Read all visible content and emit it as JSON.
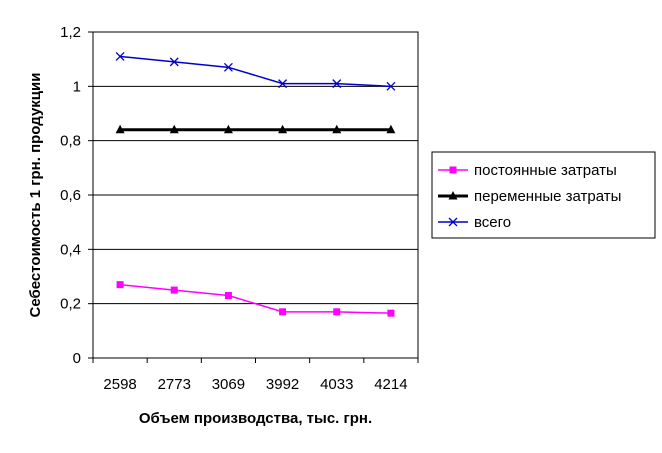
{
  "chart_data": {
    "type": "line",
    "title": "",
    "xlabel": "Объем производства, тыс. грн.",
    "ylabel": "Себестоимость 1 грн. продукции",
    "categories": [
      "2598",
      "2773",
      "3069",
      "3992",
      "4033",
      "4214"
    ],
    "ylim": [
      0,
      1.2
    ],
    "yticks": [
      "0",
      "0,2",
      "0,4",
      "0,6",
      "0,8",
      "1",
      "1,2"
    ],
    "grid": true,
    "legend_position": "right",
    "series": [
      {
        "name": "постоянные затраты",
        "color": "#ff00ff",
        "marker": "square",
        "values": [
          0.27,
          0.25,
          0.23,
          0.17,
          0.17,
          0.165
        ]
      },
      {
        "name": "переменные затраты",
        "color": "#000000",
        "marker": "triangle",
        "values": [
          0.84,
          0.84,
          0.84,
          0.84,
          0.84,
          0.84
        ]
      },
      {
        "name": "всего",
        "color": "#0000cc",
        "marker": "x",
        "values": [
          1.11,
          1.09,
          1.07,
          1.01,
          1.01,
          1.0
        ]
      }
    ]
  }
}
